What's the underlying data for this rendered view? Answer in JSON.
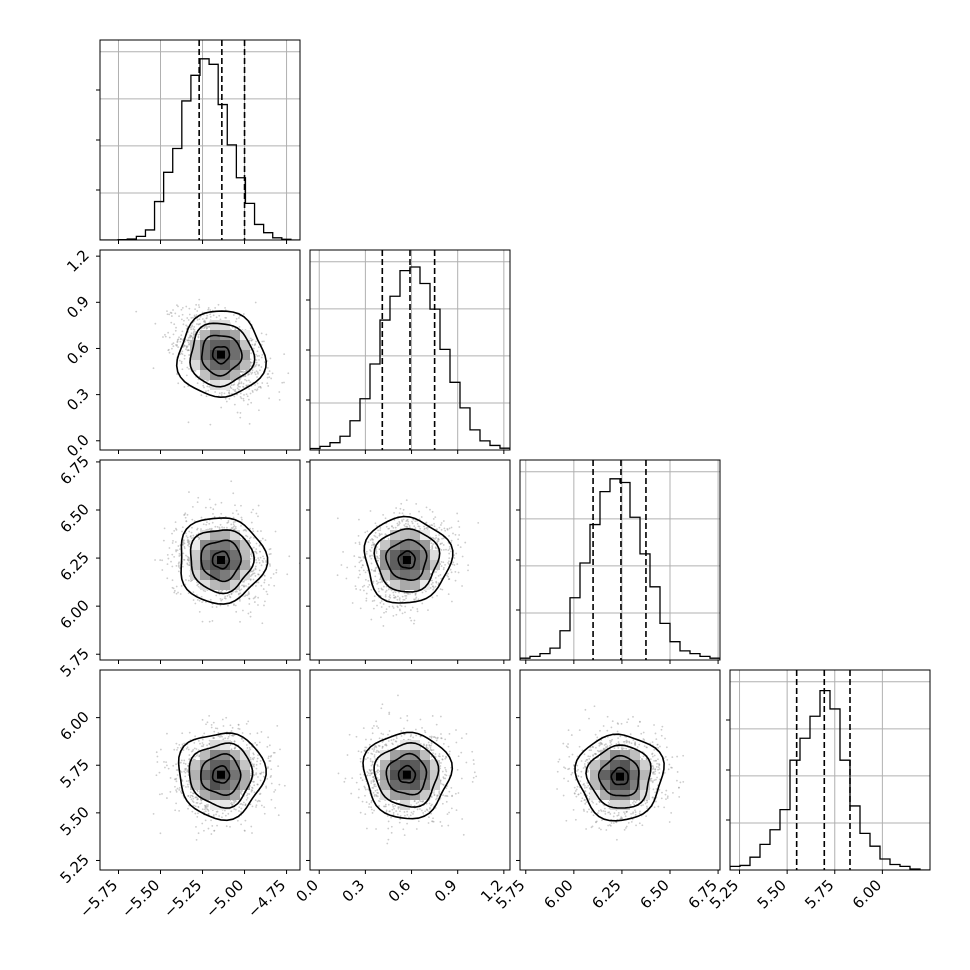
{
  "chart_data": {
    "type": "corner",
    "params": [
      {
        "range": [
          -5.86,
          -4.67
        ],
        "ticks": [
          -5.75,
          -5.5,
          -5.25,
          -5.0,
          -4.75
        ],
        "tick_labels": [
          "−5.75",
          "−5.50",
          "−5.25",
          "−5.00",
          "−4.75"
        ],
        "quantiles": [
          -5.27,
          -5.135,
          -5.0
        ],
        "hist": [
          0,
          0,
          0.002,
          0.005,
          0.02,
          0.055,
          0.21,
          0.37,
          0.5,
          0.76,
          0.9,
          0.99,
          0.96,
          0.74,
          0.52,
          0.34,
          0.2,
          0.085,
          0.04,
          0.012,
          0.004,
          0
        ]
      },
      {
        "range": [
          -0.06,
          1.24
        ],
        "ticks": [
          0.0,
          0.3,
          0.6,
          0.9,
          1.2
        ],
        "tick_labels": [
          "0.0",
          "0.3",
          "0.6",
          "0.9",
          "1.2"
        ],
        "quantiles": [
          0.41,
          0.59,
          0.75
        ],
        "hist": [
          0.008,
          0.02,
          0.04,
          0.075,
          0.16,
          0.28,
          0.47,
          0.71,
          0.84,
          0.98,
          1.0,
          0.91,
          0.77,
          0.55,
          0.37,
          0.23,
          0.11,
          0.05,
          0.025,
          0.01
        ]
      },
      {
        "range": [
          5.72,
          6.76
        ],
        "ticks": [
          5.75,
          6.0,
          6.25,
          6.5,
          6.75
        ],
        "tick_labels": [
          "5.75",
          "6.00",
          "6.25",
          "6.50",
          "6.75"
        ],
        "quantiles": [
          6.1,
          6.245,
          6.375
        ],
        "hist": [
          0.01,
          0.02,
          0.035,
          0.065,
          0.16,
          0.34,
          0.53,
          0.74,
          0.92,
          0.99,
          0.97,
          0.78,
          0.58,
          0.4,
          0.2,
          0.1,
          0.05,
          0.035,
          0.02,
          0.01
        ]
      },
      {
        "range": [
          5.2,
          6.25
        ],
        "ticks": [
          5.25,
          5.5,
          5.75,
          6.0
        ],
        "tick_labels": [
          "5.25",
          "5.50",
          "5.75",
          "6.00"
        ],
        "quantiles": [
          5.55,
          5.695,
          5.83
        ],
        "hist": [
          0.02,
          0.025,
          0.07,
          0.14,
          0.22,
          0.33,
          0.6,
          0.72,
          0.84,
          0.98,
          0.88,
          0.6,
          0.35,
          0.2,
          0.13,
          0.06,
          0.03,
          0.02,
          0.005,
          0
        ]
      }
    ],
    "blobs": [
      {
        "row": 1,
        "col": 0,
        "center": [
          -5.14,
          0.56
        ],
        "rho": -0.4
      },
      {
        "row": 2,
        "col": 0,
        "center": [
          -5.14,
          6.24
        ],
        "rho": -0.1
      },
      {
        "row": 2,
        "col": 1,
        "center": [
          0.57,
          6.24
        ],
        "rho": 0.1
      },
      {
        "row": 3,
        "col": 0,
        "center": [
          -5.14,
          5.7
        ],
        "rho": 0.0
      },
      {
        "row": 3,
        "col": 1,
        "center": [
          0.57,
          5.7
        ],
        "rho": 0.0
      },
      {
        "row": 3,
        "col": 2,
        "center": [
          6.24,
          5.69
        ],
        "rho": 0.05
      }
    ],
    "grid": true,
    "quantile_line_style": "dashed"
  }
}
